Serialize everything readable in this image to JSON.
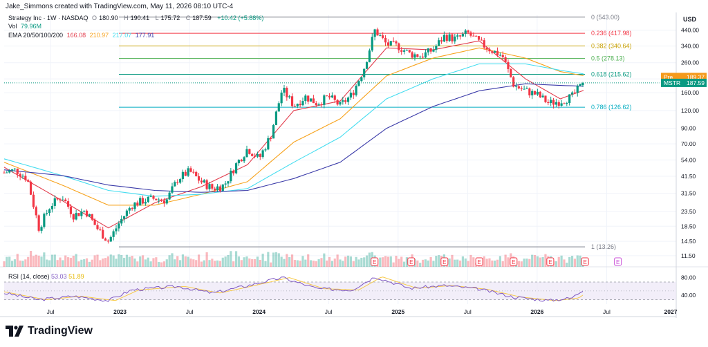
{
  "caption": "Jake_Simmons created with TradingView.com, May 11, 2026 08:10 UTC-4",
  "header": {
    "symbol": "Strategy Inc · 1W · NASDAQ",
    "ohlc": [
      {
        "k": "O",
        "v": "180.90"
      },
      {
        "k": "H",
        "v": "190.41"
      },
      {
        "k": "L",
        "v": "175.72"
      },
      {
        "k": "C",
        "v": "187.59"
      }
    ],
    "change": "+10.42 (+5.88%)",
    "vol_label": "Vol",
    "vol_value": "79.96M",
    "ema_label": "EMA 20/50/100/200",
    "ema_values": [
      {
        "v": "166.08",
        "color": "#e23c4c"
      },
      {
        "v": "210.97",
        "color": "#f7a21b"
      },
      {
        "v": "217.07",
        "color": "#45ddf0"
      },
      {
        "v": "177.91",
        "color": "#3a3aa8"
      }
    ]
  },
  "rsi": {
    "label": "RSI (14, close)",
    "value": "53.03",
    "ma_value": "51.89",
    "ticks": [
      "80.00",
      "40.00"
    ]
  },
  "currency": "USD",
  "brand": "TradingView",
  "price_axis": {
    "ticks": [
      "440.00",
      "340.00",
      "260.00",
      "200.00",
      "160.00",
      "120.00",
      "90.00",
      "70.00",
      "54.00",
      "41.50",
      "31.50",
      "23.50",
      "18.50",
      "14.50",
      "11.50"
    ],
    "pre_label": "Pre",
    "pre_value": "189.37",
    "last_label": "MSTR",
    "last_value": "187.59"
  },
  "time_axis": [
    "Jul",
    "2023",
    "Jul",
    "2024",
    "Jul",
    "2025",
    "Jul",
    "2026",
    "Jul",
    "2027"
  ],
  "fib_levels": [
    {
      "label": "0 (543.00)",
      "color": "#787b86"
    },
    {
      "label": "0.236 (417.98)",
      "color": "#f23645"
    },
    {
      "label": "0.382 (340.64)",
      "color": "#c8a000"
    },
    {
      "label": "0.5 (278.13)",
      "color": "#4caf50"
    },
    {
      "label": "0.618 (215.62)",
      "color": "#089981"
    },
    {
      "label": "0.786 (126.62)",
      "color": "#00acc1"
    },
    {
      "label": "1 (13.26)",
      "color": "#787b86"
    }
  ],
  "earnings_marker": "E",
  "colors": {
    "up": "#089981",
    "down": "#f23645",
    "grid": "#f0f3fa",
    "rsi_band": "#ede7f6",
    "rsi_line": "#7e57c2",
    "rsi_ma": "#f7c948"
  },
  "chart_data": {
    "type": "candlestick",
    "title": "Strategy Inc · 1W · NASDAQ",
    "y_scale": "log",
    "ylim": [
      10.5,
      560
    ],
    "x_range": [
      "2022-03",
      "2027-01"
    ],
    "anchor_closes": [
      [
        "2022-03",
        44
      ],
      [
        "2022-04",
        46
      ],
      [
        "2022-05",
        40
      ],
      [
        "2022-06",
        18
      ],
      [
        "2022-07",
        26
      ],
      [
        "2022-08",
        30
      ],
      [
        "2022-09",
        22
      ],
      [
        "2022-10",
        24
      ],
      [
        "2022-11",
        18
      ],
      [
        "2022-12",
        14.5
      ],
      [
        "2023-01",
        20
      ],
      [
        "2023-02",
        26
      ],
      [
        "2023-03",
        28
      ],
      [
        "2023-04",
        29
      ],
      [
        "2023-05",
        28
      ],
      [
        "2023-06",
        40
      ],
      [
        "2023-07",
        45
      ],
      [
        "2023-08",
        38
      ],
      [
        "2023-09",
        34
      ],
      [
        "2023-10",
        36
      ],
      [
        "2023-11",
        50
      ],
      [
        "2023-12",
        65
      ],
      [
        "2024-01",
        55
      ],
      [
        "2024-02",
        80
      ],
      [
        "2024-03",
        170
      ],
      [
        "2024-04",
        130
      ],
      [
        "2024-05",
        150
      ],
      [
        "2024-06",
        135
      ],
      [
        "2024-07",
        150
      ],
      [
        "2024-08",
        130
      ],
      [
        "2024-09",
        155
      ],
      [
        "2024-10",
        230
      ],
      [
        "2024-11",
        440
      ],
      [
        "2024-12",
        350
      ],
      [
        "2025-01",
        340
      ],
      [
        "2025-02",
        300
      ],
      [
        "2025-03",
        290
      ],
      [
        "2025-04",
        320
      ],
      [
        "2025-05",
        400
      ],
      [
        "2025-06",
        380
      ],
      [
        "2025-07",
        420
      ],
      [
        "2025-08",
        360
      ],
      [
        "2025-09",
        320
      ],
      [
        "2025-10",
        290
      ],
      [
        "2025-11",
        180
      ],
      [
        "2025-12",
        165
      ],
      [
        "2026-01",
        155
      ],
      [
        "2026-02",
        135
      ],
      [
        "2026-03",
        140
      ],
      [
        "2026-04",
        150
      ],
      [
        "2026-05",
        187.59
      ]
    ],
    "ema_series": [
      {
        "name": "EMA 20",
        "color": "#e23c4c",
        "points": [
          [
            "2022-03",
            48
          ],
          [
            "2022-08",
            28
          ],
          [
            "2022-12",
            18
          ],
          [
            "2023-04",
            27
          ],
          [
            "2023-08",
            35
          ],
          [
            "2023-12",
            50
          ],
          [
            "2024-04",
            120
          ],
          [
            "2024-08",
            140
          ],
          [
            "2024-12",
            330
          ],
          [
            "2025-04",
            320
          ],
          [
            "2025-08",
            370
          ],
          [
            "2025-12",
            200
          ],
          [
            "2026-03",
            145
          ],
          [
            "2026-05",
            166.08
          ]
        ]
      },
      {
        "name": "EMA 50",
        "color": "#f7a21b",
        "points": [
          [
            "2022-03",
            52
          ],
          [
            "2022-08",
            36
          ],
          [
            "2022-12",
            26
          ],
          [
            "2023-04",
            26
          ],
          [
            "2023-08",
            31
          ],
          [
            "2023-12",
            38
          ],
          [
            "2024-04",
            72
          ],
          [
            "2024-08",
            105
          ],
          [
            "2024-12",
            210
          ],
          [
            "2025-04",
            280
          ],
          [
            "2025-08",
            330
          ],
          [
            "2025-12",
            280
          ],
          [
            "2026-03",
            225
          ],
          [
            "2026-05",
            210.97
          ]
        ]
      },
      {
        "name": "EMA 100",
        "color": "#45ddf0",
        "points": [
          [
            "2022-03",
            55
          ],
          [
            "2022-08",
            42
          ],
          [
            "2022-12",
            33
          ],
          [
            "2023-04",
            30
          ],
          [
            "2023-08",
            31
          ],
          [
            "2023-12",
            34
          ],
          [
            "2024-04",
            52
          ],
          [
            "2024-08",
            78
          ],
          [
            "2024-12",
            145
          ],
          [
            "2025-04",
            200
          ],
          [
            "2025-08",
            255
          ],
          [
            "2025-12",
            255
          ],
          [
            "2026-03",
            230
          ],
          [
            "2026-05",
            217.07
          ]
        ]
      },
      {
        "name": "EMA 200",
        "color": "#3a3aa8",
        "points": [
          [
            "2022-03",
            46
          ],
          [
            "2022-08",
            42
          ],
          [
            "2022-12",
            36
          ],
          [
            "2023-04",
            33
          ],
          [
            "2023-08",
            32
          ],
          [
            "2023-12",
            33
          ],
          [
            "2024-04",
            40
          ],
          [
            "2024-08",
            52
          ],
          [
            "2024-12",
            90
          ],
          [
            "2025-04",
            128
          ],
          [
            "2025-08",
            165
          ],
          [
            "2025-12",
            185
          ],
          [
            "2026-03",
            180
          ],
          [
            "2026-05",
            177.91
          ]
        ]
      }
    ],
    "fibonacci": [
      {
        "ratio": 0,
        "price": 543.0
      },
      {
        "ratio": 0.236,
        "price": 417.98
      },
      {
        "ratio": 0.382,
        "price": 340.64
      },
      {
        "ratio": 0.5,
        "price": 278.13
      },
      {
        "ratio": 0.618,
        "price": 215.62
      },
      {
        "ratio": 0.786,
        "price": 126.62
      },
      {
        "ratio": 1,
        "price": 13.26
      }
    ],
    "earnings_dates": [
      "2024-10-30",
      "2025-02-05",
      "2025-05-01",
      "2025-07-31",
      "2025-10-30",
      "2026-02-05",
      "2026-05-05"
    ],
    "earnings_future": [
      "2026-07-30"
    ],
    "rsi_anchor": [
      [
        "2022-03",
        45
      ],
      [
        "2022-06",
        30
      ],
      [
        "2022-09",
        38
      ],
      [
        "2022-12",
        28
      ],
      [
        "2023-02",
        52
      ],
      [
        "2023-06",
        60
      ],
      [
        "2023-09",
        45
      ],
      [
        "2023-12",
        62
      ],
      [
        "2024-03",
        80
      ],
      [
        "2024-06",
        55
      ],
      [
        "2024-09",
        52
      ],
      [
        "2024-11",
        82
      ],
      [
        "2025-02",
        56
      ],
      [
        "2025-05",
        62
      ],
      [
        "2025-08",
        54
      ],
      [
        "2025-11",
        36
      ],
      [
        "2026-02",
        28
      ],
      [
        "2026-04",
        34
      ],
      [
        "2026-05",
        53.03
      ]
    ],
    "rsi_ylim": [
      20,
      95
    ]
  }
}
